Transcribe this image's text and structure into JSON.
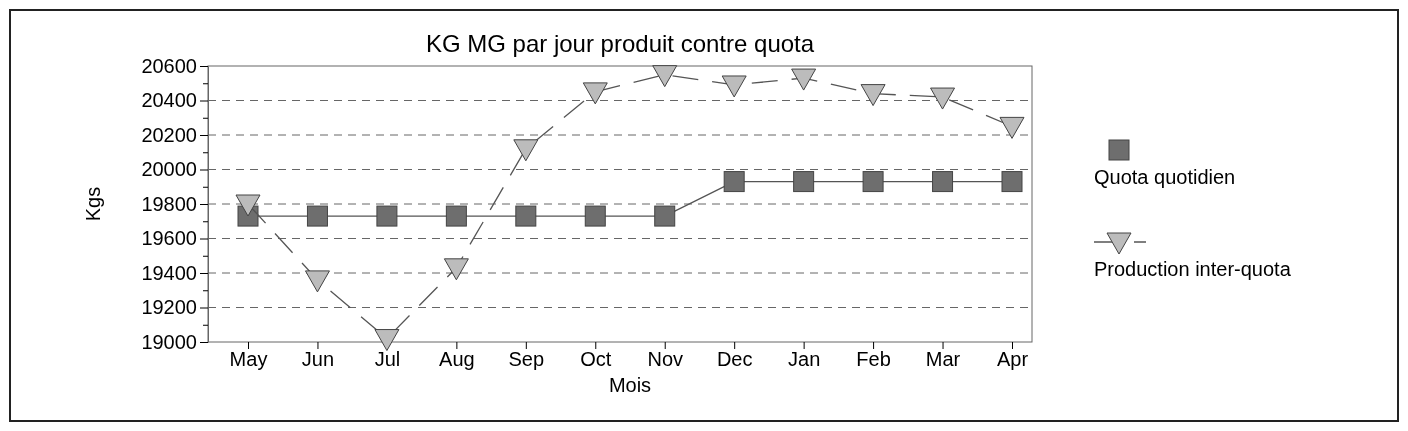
{
  "chart_data": {
    "type": "line",
    "title": "KG MG par jour produit contre quota",
    "xlabel": "Mois",
    "ylabel": "Kgs",
    "categories": [
      "May",
      "Jun",
      "Jul",
      "Aug",
      "Sep",
      "Oct",
      "Nov",
      "Dec",
      "Jan",
      "Feb",
      "Mar",
      "Apr"
    ],
    "series": [
      {
        "name": "Quota quotidien",
        "color": "#6e6e6e",
        "marker": "square",
        "line_style": "solid",
        "values": [
          19730,
          19730,
          19730,
          19730,
          19730,
          19730,
          19730,
          19930,
          19930,
          19930,
          19930,
          19930
        ]
      },
      {
        "name": "Production inter-quota",
        "color": "#bcbcbc",
        "marker": "triangle",
        "line_style": "dashed",
        "values": [
          19800,
          19360,
          19020,
          19430,
          20120,
          20450,
          20550,
          20490,
          20530,
          20440,
          20420,
          20250
        ]
      }
    ],
    "ylim": [
      19000,
      20600
    ],
    "yticks": [
      19000,
      {
        "value": 19100,
        "label": null
      },
      19200,
      {
        "value": 19300,
        "label": null
      },
      19400,
      {
        "value": 19500,
        "label": null
      },
      19600,
      {
        "value": 19700,
        "label": null
      },
      19800,
      {
        "value": 19900,
        "label": null
      },
      20000,
      {
        "value": 20100,
        "label": null
      },
      20200,
      {
        "value": 20300,
        "label": null
      },
      20400,
      {
        "value": 20500,
        "label": null
      },
      20600
    ],
    "grid": "y",
    "legend": "right"
  }
}
